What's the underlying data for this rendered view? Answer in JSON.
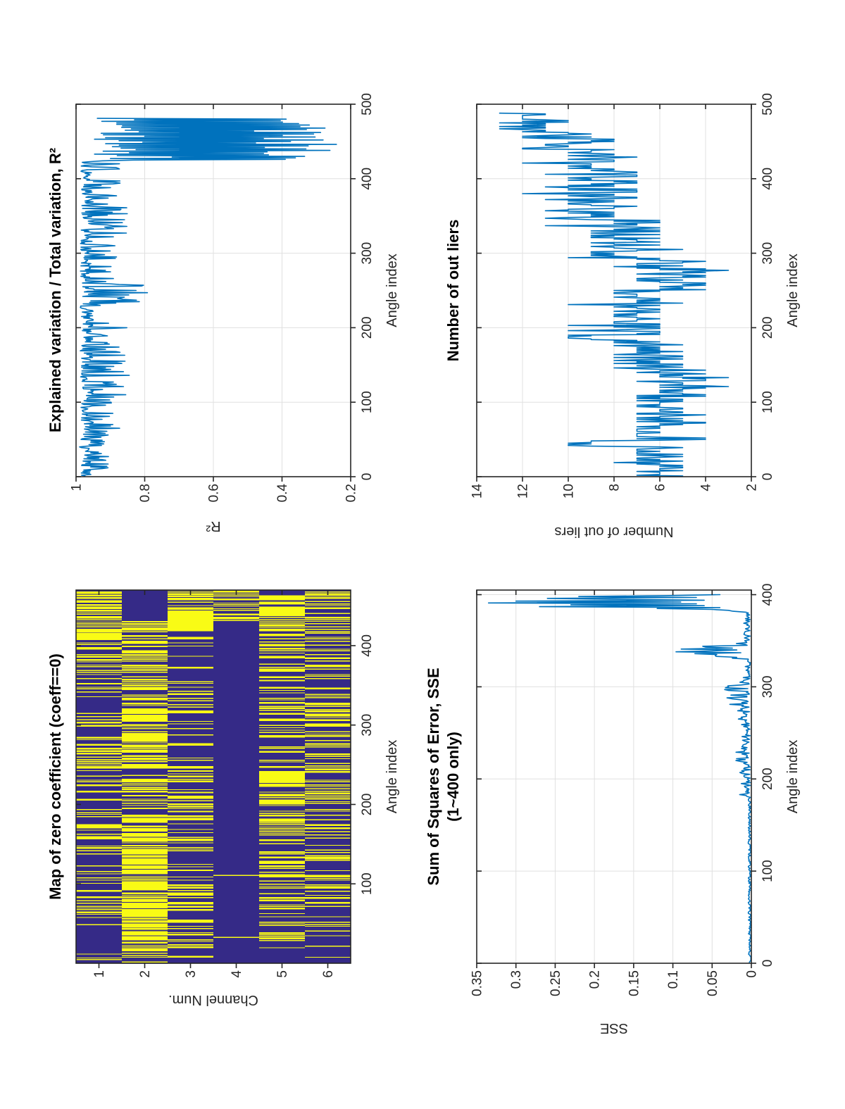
{
  "figure": {
    "background": "#ffffff",
    "axis_color": "#262626",
    "grid_color": "#e0e0e0",
    "line_color": "#0072bd",
    "map_blue": "#352a87",
    "map_yellow": "#f9fb15",
    "orientation": "rotated-90-ccw"
  },
  "chart_data": [
    {
      "id": "map",
      "type": "heatmap",
      "title": "Map of zero coefficient (coeff==0)",
      "xlabel": "Angle index",
      "ylabel": "Channel Num.",
      "xlim": [
        0,
        470
      ],
      "xticks": [
        100,
        200,
        300,
        400
      ],
      "xtick_labels": [
        "100",
        "200",
        "300",
        "400"
      ],
      "yticks": [
        1,
        2,
        3,
        4,
        5,
        6
      ],
      "ytick_labels": [
        "1",
        "2",
        "3",
        "4",
        "5",
        "6"
      ],
      "grid": false,
      "seed": 99,
      "value_colors": {
        "zero_coeff": "#f9fb15",
        "nonzero_coeff": "#352a87"
      },
      "channels": [
        {
          "channel": 1,
          "bands": [
            [
              0,
              55,
              0.1
            ],
            [
              55,
              80,
              0.35
            ],
            [
              80,
              140,
              0.22
            ],
            [
              140,
              205,
              0.32
            ],
            [
              205,
              245,
              0.28
            ],
            [
              245,
              265,
              0.45
            ],
            [
              265,
              330,
              0.3
            ],
            [
              330,
              345,
              0.18
            ],
            [
              345,
              395,
              0.38
            ],
            [
              395,
              440,
              0.45
            ],
            [
              440,
              470,
              0.5
            ]
          ]
        },
        {
          "channel": 2,
          "bands": [
            [
              0,
              12,
              0.3
            ],
            [
              12,
              125,
              0.72
            ],
            [
              125,
              185,
              0.66
            ],
            [
              185,
              215,
              0.5
            ],
            [
              215,
              250,
              0.62
            ],
            [
              250,
              285,
              0.55
            ],
            [
              285,
              325,
              0.6
            ],
            [
              325,
              360,
              0.45
            ],
            [
              360,
              415,
              0.42
            ],
            [
              415,
              432,
              0.78
            ],
            [
              432,
              470,
              0.05
            ]
          ]
        },
        {
          "channel": 3,
          "bands": [
            [
              0,
              45,
              0.3
            ],
            [
              45,
              105,
              0.36
            ],
            [
              105,
              175,
              0.28
            ],
            [
              175,
              260,
              0.34
            ],
            [
              260,
              310,
              0.22
            ],
            [
              310,
              355,
              0.26
            ],
            [
              355,
              418,
              0.13
            ],
            [
              418,
              448,
              0.95
            ],
            [
              448,
              470,
              0.45
            ]
          ]
        },
        {
          "channel": 4,
          "bands": [
            [
              0,
              300,
              0.004
            ],
            [
              300,
              360,
              0.012
            ],
            [
              360,
              428,
              0.004
            ],
            [
              428,
              470,
              0.5
            ]
          ]
        },
        {
          "channel": 5,
          "bands": [
            [
              0,
              28,
              0.18
            ],
            [
              28,
              60,
              0.42
            ],
            [
              60,
              95,
              0.14
            ],
            [
              95,
              148,
              0.36
            ],
            [
              148,
              200,
              0.26
            ],
            [
              200,
              222,
              0.42
            ],
            [
              222,
              240,
              0.78
            ],
            [
              240,
              275,
              0.28
            ],
            [
              275,
              330,
              0.36
            ],
            [
              330,
              365,
              0.2
            ],
            [
              365,
              418,
              0.4
            ],
            [
              418,
              440,
              0.72
            ],
            [
              440,
              462,
              0.82
            ],
            [
              462,
              470,
              0.3
            ]
          ]
        },
        {
          "channel": 6,
          "bands": [
            [
              0,
              40,
              0.12
            ],
            [
              40,
              95,
              0.24
            ],
            [
              95,
              150,
              0.32
            ],
            [
              150,
              205,
              0.22
            ],
            [
              205,
              260,
              0.28
            ],
            [
              260,
              330,
              0.34
            ],
            [
              330,
              400,
              0.27
            ],
            [
              400,
              437,
              0.4
            ],
            [
              437,
              470,
              0.48
            ]
          ]
        }
      ]
    },
    {
      "id": "r2",
      "type": "line",
      "title": "Explained variation / Total variation, R²",
      "xlabel": "Angle index",
      "ylabel": "R²",
      "xlim": [
        0,
        500
      ],
      "ylim": [
        0.2,
        1
      ],
      "xticks": [
        0,
        100,
        200,
        300,
        400,
        500
      ],
      "xtick_labels": [
        "0",
        "100",
        "200",
        "300",
        "400",
        "500"
      ],
      "yticks": [
        1,
        0.8,
        0.6,
        0.4,
        0.2
      ],
      "ytick_labels": [
        "1",
        "0.8",
        "0.6",
        "0.4",
        "0.2"
      ],
      "grid": true,
      "seed": 42,
      "x_start": 1,
      "x_end": 481,
      "segments": [
        {
          "x0": 1,
          "x1": 60,
          "lo": 0.95,
          "hi": 0.99,
          "spike_p": 0.28,
          "spike_lo": 0.905,
          "spike_hi": 0.935
        },
        {
          "x0": 61,
          "x1": 100,
          "lo": 0.948,
          "hi": 0.988,
          "spike_p": 0.28,
          "spike_lo": 0.885,
          "spike_hi": 0.93
        },
        {
          "x0": 101,
          "x1": 160,
          "lo": 0.948,
          "hi": 0.988,
          "spike_p": 0.3,
          "spike_lo": 0.855,
          "spike_hi": 0.925
        },
        {
          "x0": 161,
          "x1": 230,
          "lo": 0.95,
          "hi": 0.988,
          "spike_p": 0.26,
          "spike_lo": 0.87,
          "spike_hi": 0.93
        },
        {
          "x0": 231,
          "x1": 258,
          "lo": 0.94,
          "hi": 0.985,
          "spike_p": 0.42,
          "spike_lo": 0.8,
          "spike_hi": 0.9
        },
        {
          "x0": 259,
          "x1": 320,
          "lo": 0.95,
          "hi": 0.988,
          "spike_p": 0.22,
          "spike_lo": 0.885,
          "spike_hi": 0.93
        },
        {
          "x0": 321,
          "x1": 365,
          "lo": 0.945,
          "hi": 0.985,
          "spike_p": 0.32,
          "spike_lo": 0.85,
          "spike_hi": 0.92
        },
        {
          "x0": 366,
          "x1": 424,
          "lo": 0.948,
          "hi": 0.986,
          "spike_p": 0.28,
          "spike_lo": 0.87,
          "spike_hi": 0.93
        },
        {
          "x0": 425,
          "x1": 481,
          "lo": 0.23,
          "hi": 0.96,
          "alt": true
        }
      ],
      "events": {
        "65": 0.873,
        "136": 0.845,
        "141": 0.862,
        "163": 0.858,
        "200": 0.852,
        "247": 0.792,
        "250": 0.825,
        "295": 0.882,
        "336": 0.852,
        "341": 0.865,
        "358": 0.872,
        "377": 0.882,
        "397": 0.872,
        "427": 0.9,
        "429": 0.72,
        "431": 0.88
      }
    },
    {
      "id": "sse",
      "type": "line",
      "title": "Sum of Squares of Error, SSE",
      "subtitle": "(1~400 only)",
      "xlabel": "Angle index",
      "ylabel": "SSE",
      "xlim": [
        0,
        405
      ],
      "ylim": [
        0,
        0.35
      ],
      "xticks": [
        0,
        100,
        200,
        300,
        400
      ],
      "xtick_labels": [
        "0",
        "100",
        "200",
        "300",
        "400"
      ],
      "yticks": [
        0.35,
        0.3,
        0.25,
        0.2,
        0.15,
        0.1,
        0.05,
        0
      ],
      "ytick_labels": [
        "0.35",
        "0.3",
        "0.25",
        "0.2",
        "0.15",
        "0.1",
        "0.05",
        "0"
      ],
      "grid": true,
      "seed": 13,
      "x_start": 1,
      "x_end": 400,
      "segments": [
        {
          "x0": 1,
          "x1": 180,
          "lo": 0.0005,
          "hi": 0.004
        },
        {
          "x0": 181,
          "x1": 215,
          "lo": 0.001,
          "hi": 0.01,
          "spike_p": 0.15,
          "spike_lo": 0.01,
          "spike_hi": 0.015
        },
        {
          "x0": 216,
          "x1": 275,
          "lo": 0.001,
          "hi": 0.012,
          "spike_p": 0.18,
          "spike_lo": 0.012,
          "spike_hi": 0.02
        },
        {
          "x0": 276,
          "x1": 310,
          "lo": 0.002,
          "hi": 0.015,
          "spike_p": 0.25,
          "spike_lo": 0.02,
          "spike_hi": 0.034
        },
        {
          "x0": 311,
          "x1": 330,
          "lo": 0.001,
          "hi": 0.008
        },
        {
          "x0": 331,
          "x1": 348,
          "lo": 0.004,
          "hi": 0.03,
          "spike_p": 0.3,
          "spike_lo": 0.04,
          "spike_hi": 0.09
        },
        {
          "x0": 349,
          "x1": 381,
          "lo": 0.001,
          "hi": 0.01
        },
        {
          "x0": 382,
          "x1": 400,
          "lo": 0.01,
          "hi": 0.03
        }
      ],
      "events": {
        "291": 0.026,
        "297": 0.034,
        "301": 0.03,
        "334": 0.046,
        "336": 0.072,
        "338": 0.096,
        "343": 0.058,
        "384": 0.05,
        "385": 0.12,
        "386": 0.04,
        "387": 0.27,
        "388": 0.06,
        "389": 0.23,
        "390": 0.07,
        "391": 0.335,
        "392": 0.09,
        "393": 0.3,
        "394": 0.06,
        "395": 0.18,
        "396": 0.26,
        "397": 0.07,
        "398": 0.22,
        "399": 0.11,
        "400": 0.04
      }
    },
    {
      "id": "outliers",
      "type": "line",
      "title": "Number of out liers",
      "xlabel": "Angle index",
      "ylabel": "Number of out liers",
      "xlim": [
        0,
        500
      ],
      "ylim": [
        2,
        14
      ],
      "xticks": [
        0,
        100,
        200,
        300,
        400,
        500
      ],
      "xtick_labels": [
        "0",
        "100",
        "200",
        "300",
        "400",
        "500"
      ],
      "yticks": [
        14,
        12,
        10,
        8,
        6,
        4,
        2
      ],
      "ytick_labels": [
        "14",
        "12",
        "10",
        "8",
        "6",
        "4",
        "2"
      ],
      "grid": true,
      "seed": 7,
      "round": true,
      "x_start": 1,
      "x_end": 488,
      "segments": [
        {
          "x0": 1,
          "x1": 40,
          "lo": 5.0,
          "hi": 7.4,
          "spike_p": 0.06,
          "spike_lo": 8.0,
          "spike_hi": 9.0
        },
        {
          "x0": 41,
          "x1": 48,
          "lo": 8.0,
          "hi": 10.0
        },
        {
          "x0": 49,
          "x1": 105,
          "lo": 4.4,
          "hi": 7.4,
          "spike_p": 0.1,
          "spike_lo": 3.5,
          "spike_hi": 4.5
        },
        {
          "x0": 106,
          "x1": 145,
          "lo": 3.2,
          "hi": 6.8
        },
        {
          "x0": 146,
          "x1": 183,
          "lo": 5.0,
          "hi": 8.2
        },
        {
          "x0": 184,
          "x1": 190,
          "lo": 8.6,
          "hi": 10.4
        },
        {
          "x0": 191,
          "x1": 250,
          "lo": 5.4,
          "hi": 8.4,
          "spike_p": 0.08,
          "spike_lo": 9.0,
          "spike_hi": 10.0
        },
        {
          "x0": 251,
          "x1": 292,
          "lo": 4.2,
          "hi": 7.6,
          "spike_p": 0.18,
          "spike_lo": 3.4,
          "spike_hi": 4.6
        },
        {
          "x0": 293,
          "x1": 345,
          "lo": 5.8,
          "hi": 9.2,
          "spike_p": 0.05,
          "spike_lo": 10.0,
          "spike_hi": 11.0
        },
        {
          "x0": 346,
          "x1": 430,
          "lo": 6.6,
          "hi": 10.2,
          "spike_p": 0.07,
          "spike_lo": 10.6,
          "spike_hi": 12.0
        },
        {
          "x0": 431,
          "x1": 464,
          "lo": 7.6,
          "hi": 11.2,
          "spike_p": 0.12,
          "spike_lo": 11.5,
          "spike_hi": 12.5
        },
        {
          "x0": 465,
          "x1": 488,
          "lo": 9.6,
          "hi": 13.2
        }
      ],
      "events": {
        "45": 10,
        "121": 3,
        "133": 3,
        "186": 10,
        "270": 4,
        "305": 5,
        "337": 11,
        "440": 12,
        "470": 13,
        "475": 13,
        "482": 12,
        "487": 11
      }
    }
  ]
}
